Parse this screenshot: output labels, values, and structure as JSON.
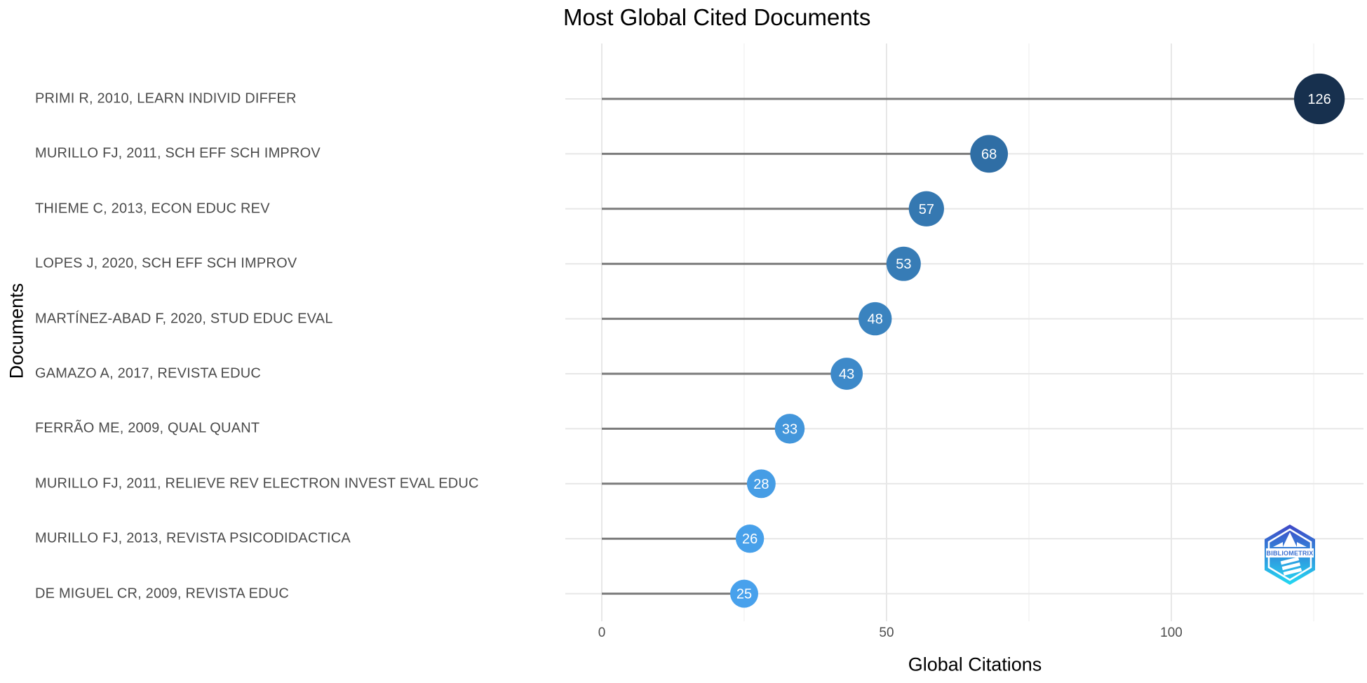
{
  "chart_data": {
    "type": "bar",
    "variant": "horizontal-lollipop",
    "title": "Most Global Cited Documents",
    "xlabel": "Global Citations",
    "ylabel": "Documents",
    "categories": [
      "PRIMI R, 2010, LEARN INDIVID DIFFER",
      "MURILLO FJ, 2011, SCH EFF SCH IMPROV",
      "THIEME C, 2013, ECON EDUC REV",
      "LOPES J, 2020, SCH EFF SCH IMPROV",
      "MARTÍNEZ-ABAD F, 2020, STUD EDUC EVAL",
      "GAMAZO A, 2017, REVISTA EDUC",
      "FERRÃO ME, 2009, QUAL QUANT",
      "MURILLO FJ, 2011, RELIEVE REV ELECTRON INVEST EVAL EDUC",
      "MURILLO FJ, 2013, REVISTA PSICODIDACTICA",
      "DE MIGUEL CR, 2009, REVISTA EDUC"
    ],
    "values": [
      126,
      68,
      57,
      53,
      48,
      43,
      33,
      28,
      26,
      25
    ],
    "point_colors": [
      "#17304E",
      "#2F6EA5",
      "#3578B1",
      "#377CB6",
      "#3A83BF",
      "#3D89C9",
      "#4396DB",
      "#469DE5",
      "#47A0EA",
      "#48A1EC"
    ],
    "x_ticks": [
      0,
      50,
      100
    ],
    "x_minor_ticks": [
      25,
      75,
      125
    ],
    "xlim": [
      0,
      133
    ],
    "grid": true,
    "legend": false
  },
  "colors": {
    "background": "#FFFFFF",
    "major_grid": "#E7E7E7",
    "minor_grid": "#F0F0F0",
    "stem": "#7B7B7B",
    "bubble_value_text": "#FFFFFF",
    "doc_label_text": "#4B4B4B",
    "tick_label_text": "#4D4D4D",
    "title_text": "#000000",
    "gradient_high": "#17304E",
    "gradient_low": "#48A1EC",
    "logo_gradient_top": "#3F46C6",
    "logo_gradient_bottom": "#23D9F2",
    "logo_text_color": "#3A6FD0"
  },
  "logo": {
    "text": "BIBLIOMETRIX"
  }
}
